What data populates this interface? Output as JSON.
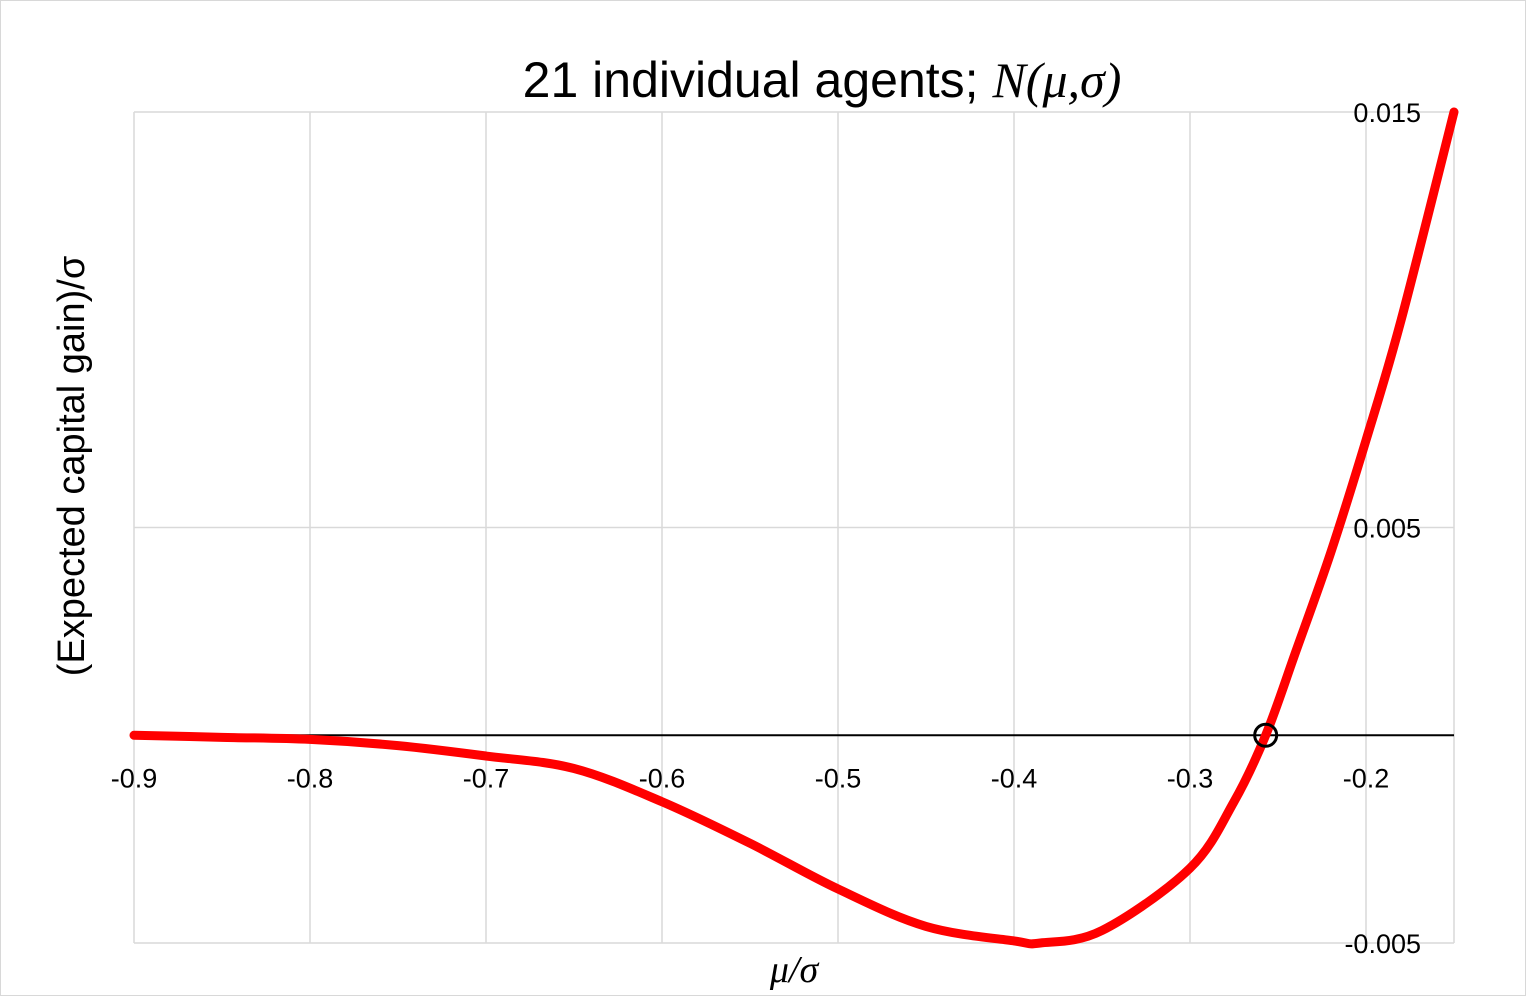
{
  "chart_data": {
    "type": "line",
    "title_plain": "21 individual agents; ",
    "title_math": "N(μ,σ)",
    "xlabel": "μ/σ",
    "ylabel": "(Expected capital gain)/σ",
    "xlim": [
      -0.9,
      -0.15
    ],
    "ylim": [
      -0.005,
      0.015
    ],
    "x_ticks": [
      "-0.9",
      "-0.8",
      "-0.7",
      "-0.6",
      "-0.5",
      "-0.4",
      "-0.3",
      "-0.2"
    ],
    "y_ticks": [
      "0.015",
      "0.005",
      "-0.005"
    ],
    "grid": true,
    "series": [
      {
        "color": "#ff0000",
        "x": [
          -0.9,
          -0.85,
          -0.8,
          -0.75,
          -0.7,
          -0.65,
          -0.6,
          -0.55,
          -0.5,
          -0.45,
          -0.4,
          -0.385,
          -0.35,
          -0.3,
          -0.275,
          -0.257,
          -0.24,
          -0.22,
          -0.2,
          -0.18,
          -0.15
        ],
        "y": [
          0.0,
          -5e-05,
          -0.0001,
          -0.00025,
          -0.0005,
          -0.0008,
          -0.0016,
          -0.0026,
          -0.0037,
          -0.0046,
          -0.00495,
          -0.005,
          -0.0047,
          -0.0032,
          -0.0016,
          0.0,
          0.002,
          0.0044,
          0.0071,
          0.01,
          0.015
        ]
      }
    ],
    "marker": {
      "x": -0.257,
      "y": 0.0
    },
    "zero_line": true
  }
}
